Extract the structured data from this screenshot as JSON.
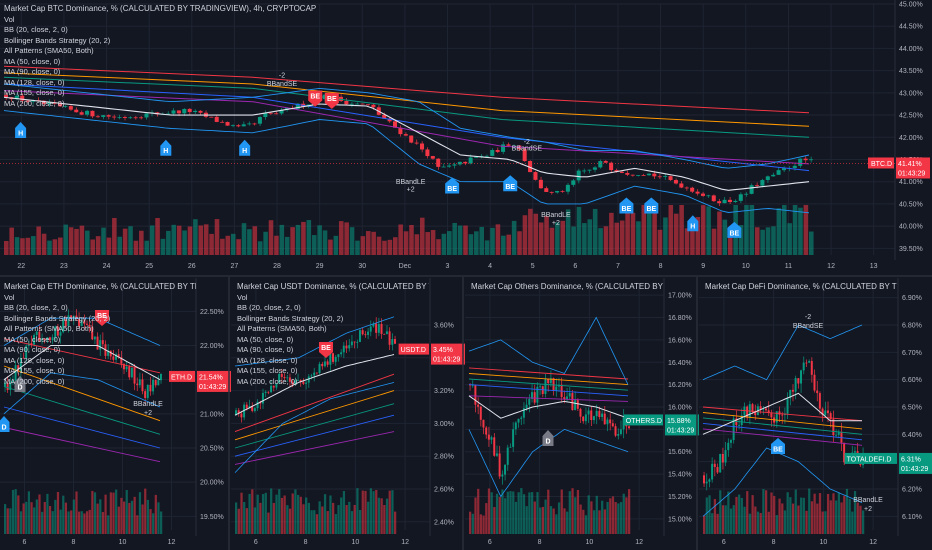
{
  "chart_data": [
    {
      "type": "line",
      "panel": "btc",
      "title": "Market Cap BTC Dominance, % (CALCULATED BY TRADINGVIEW), 4h, CRYPTOCAP",
      "indicators": [
        "Vol",
        "BB (20, close, 2, 0)",
        "Bollinger Bands Strategy (20, 2)",
        "All Patterns (SMA50, Both)",
        "MA (50, close, 0)",
        "MA (90, close, 0)",
        "MA (128, close, 0)",
        "MA (155, close, 0)",
        "MA (200, close, 0)"
      ],
      "x_labels": [
        "22",
        "23",
        "24",
        "25",
        "26",
        "27",
        "28",
        "29",
        "30",
        "Dec",
        "3",
        "4",
        "5",
        "6",
        "7",
        "8",
        "9",
        "10",
        "11",
        "12",
        "13"
      ],
      "y_ticks": [
        "45.00%",
        "44.50%",
        "44.00%",
        "43.50%",
        "43.00%",
        "42.50%",
        "42.00%",
        "41.50%",
        "41.00%",
        "40.50%",
        "40.00%",
        "39.50%"
      ],
      "ylim": [
        39.35,
        45.0
      ],
      "price_path": [
        [
          0,
          42.95
        ],
        [
          6,
          42.8
        ],
        [
          12,
          42.7
        ],
        [
          16,
          42.6
        ],
        [
          22,
          42.5
        ],
        [
          28,
          42.45
        ],
        [
          32,
          42.5
        ],
        [
          38,
          42.55
        ],
        [
          44,
          42.6
        ],
        [
          50,
          42.4
        ],
        [
          56,
          42.2
        ],
        [
          60,
          42.3
        ],
        [
          62,
          42.5
        ],
        [
          66,
          42.55
        ],
        [
          70,
          42.7
        ],
        [
          74,
          42.8
        ],
        [
          76,
          42.95
        ],
        [
          80,
          42.85
        ],
        [
          84,
          42.75
        ],
        [
          88,
          42.7
        ],
        [
          90,
          42.5
        ],
        [
          94,
          42.2
        ],
        [
          98,
          41.9
        ],
        [
          102,
          41.6
        ],
        [
          104,
          41.3
        ],
        [
          108,
          41.35
        ],
        [
          112,
          41.5
        ],
        [
          116,
          41.6
        ],
        [
          120,
          41.8
        ],
        [
          122,
          41.9
        ],
        [
          124,
          41.7
        ],
        [
          126,
          41.3
        ],
        [
          128,
          40.95
        ],
        [
          130,
          40.8
        ],
        [
          132,
          40.7
        ],
        [
          136,
          40.9
        ],
        [
          138,
          41.2
        ],
        [
          142,
          41.3
        ],
        [
          144,
          41.5
        ],
        [
          146,
          41.3
        ],
        [
          150,
          41.2
        ],
        [
          154,
          41.2
        ],
        [
          158,
          41.1
        ],
        [
          162,
          40.95
        ],
        [
          166,
          40.8
        ],
        [
          170,
          40.6
        ],
        [
          174,
          40.55
        ],
        [
          178,
          40.7
        ],
        [
          180,
          40.9
        ],
        [
          184,
          41.1
        ],
        [
          188,
          41.3
        ],
        [
          192,
          41.5
        ],
        [
          194,
          41.45
        ]
      ],
      "sma20_path": [
        [
          0,
          42.9
        ],
        [
          20,
          42.7
        ],
        [
          40,
          42.5
        ],
        [
          60,
          42.5
        ],
        [
          76,
          42.75
        ],
        [
          88,
          42.7
        ],
        [
          100,
          42.1
        ],
        [
          110,
          41.6
        ],
        [
          122,
          41.5
        ],
        [
          130,
          41.2
        ],
        [
          140,
          41.1
        ],
        [
          152,
          41.3
        ],
        [
          164,
          41.1
        ],
        [
          174,
          40.8
        ],
        [
          184,
          40.9
        ],
        [
          194,
          41.0
        ]
      ],
      "bb_upper_path": [
        [
          0,
          43.2
        ],
        [
          20,
          43.0
        ],
        [
          40,
          42.8
        ],
        [
          60,
          42.9
        ],
        [
          76,
          43.1
        ],
        [
          88,
          43.0
        ],
        [
          100,
          42.8
        ],
        [
          110,
          42.2
        ],
        [
          122,
          42.0
        ],
        [
          130,
          41.9
        ],
        [
          140,
          41.7
        ],
        [
          152,
          41.7
        ],
        [
          164,
          41.5
        ],
        [
          174,
          41.3
        ],
        [
          184,
          41.4
        ],
        [
          194,
          41.6
        ]
      ],
      "bb_lower_path": [
        [
          0,
          42.6
        ],
        [
          20,
          42.4
        ],
        [
          40,
          42.2
        ],
        [
          60,
          42.1
        ],
        [
          76,
          42.4
        ],
        [
          88,
          42.3
        ],
        [
          100,
          41.4
        ],
        [
          110,
          41.0
        ],
        [
          122,
          41.0
        ],
        [
          130,
          40.5
        ],
        [
          140,
          40.5
        ],
        [
          152,
          40.9
        ],
        [
          164,
          40.7
        ],
        [
          174,
          40.3
        ],
        [
          184,
          40.4
        ],
        [
          194,
          40.3
        ]
      ],
      "ma_paths": [
        {
          "color": "#f23645",
          "points": [
            [
              0,
              43.6
            ],
            [
              60,
              43.35
            ],
            [
              120,
              42.9
            ],
            [
              194,
              42.55
            ]
          ]
        },
        {
          "color": "#ff9800",
          "points": [
            [
              0,
              43.45
            ],
            [
              60,
              43.2
            ],
            [
              120,
              42.6
            ],
            [
              194,
              42.25
            ]
          ]
        },
        {
          "color": "#089981",
          "points": [
            [
              0,
              43.35
            ],
            [
              60,
              43.1
            ],
            [
              120,
              42.4
            ],
            [
              194,
              42.0
            ]
          ]
        },
        {
          "color": "#2962ff",
          "points": [
            [
              0,
              43.2
            ],
            [
              60,
              42.9
            ],
            [
              120,
              42.0
            ],
            [
              194,
              41.25
            ]
          ]
        },
        {
          "color": "#9c27b0",
          "points": [
            [
              0,
              43.05
            ],
            [
              60,
              42.8
            ],
            [
              120,
              41.8
            ],
            [
              194,
              41.4
            ]
          ]
        }
      ],
      "last_value": "41.41%",
      "last_label": "BTC.D",
      "last_time": "01:43:29",
      "markers": [
        {
          "t": 4,
          "v": 42.3,
          "text": "H",
          "kind": "badge-blue"
        },
        {
          "t": 39,
          "v": 41.9,
          "text": "H",
          "kind": "badge-blue"
        },
        {
          "t": 58,
          "v": 41.9,
          "text": "H",
          "kind": "badge-blue"
        },
        {
          "t": 75,
          "v": 43.05,
          "text": "BE",
          "kind": "badge-red"
        },
        {
          "t": 79,
          "v": 43.0,
          "text": "BE",
          "kind": "badge-red"
        },
        {
          "t": 108,
          "v": 41.05,
          "text": "BE",
          "kind": "badge-blue"
        },
        {
          "t": 122,
          "v": 41.1,
          "text": "BE",
          "kind": "badge-blue"
        },
        {
          "t": 150,
          "v": 40.6,
          "text": "BE",
          "kind": "badge-blue"
        },
        {
          "t": 156,
          "v": 40.6,
          "text": "BE",
          "kind": "badge-blue"
        },
        {
          "t": 166,
          "v": 40.2,
          "text": "H",
          "kind": "badge-blue"
        },
        {
          "t": 176,
          "v": 40.05,
          "text": "BE",
          "kind": "badge-blue"
        }
      ],
      "notes": [
        {
          "t": 67,
          "v": 43.35,
          "text": "-2"
        },
        {
          "t": 67,
          "v": 43.15,
          "text": "BBandSE"
        },
        {
          "t": 126,
          "v": 41.85,
          "text": "-2"
        },
        {
          "t": 126,
          "v": 41.7,
          "text": "BBandSE"
        },
        {
          "t": 98,
          "v": 40.95,
          "text": "BBandLE"
        },
        {
          "t": 98,
          "v": 40.78,
          "text": "+2"
        },
        {
          "t": 133,
          "v": 40.2,
          "text": "BBandLE"
        },
        {
          "t": 133,
          "v": 40.03,
          "text": "+2"
        }
      ]
    },
    {
      "type": "line",
      "panel": "eth",
      "title": "Market Cap ETH Dominance, % (CALCULATED BY TRADINGVIEW),",
      "indicators": [
        "Vol",
        "BB (20, close, 2, 0)",
        "Bollinger Bands Strategy (20, 2)",
        "All Patterns (SMA50, Both)",
        "MA (50, close, 0)",
        "MA (90, close, 0)",
        "MA (128, close, 0)",
        "MA (155, close, 0)",
        "MA (200, close, 0)"
      ],
      "x_labels": [
        "6",
        "8",
        "10",
        "12"
      ],
      "y_ticks": [
        "22.50%",
        "22.00%",
        "21.50%",
        "21.00%",
        "20.50%",
        "20.00%",
        "19.50%"
      ],
      "ylim": [
        19.3,
        22.9
      ],
      "last_value": "21.54%",
      "last_label": "ETH.D",
      "last_time": "01:43:29"
    },
    {
      "type": "line",
      "panel": "usdt",
      "title": "Market Cap USDT Dominance, % (CALCULATED BY TRADINGVIEW),",
      "x_labels": [
        "6",
        "8",
        "10",
        "12"
      ],
      "y_ticks": [
        "3.60%",
        "3.40%",
        "3.20%",
        "3.00%",
        "2.80%",
        "2.60%",
        "2.40%"
      ],
      "ylim": [
        2.35,
        3.85
      ],
      "last_value": "3.45%",
      "last_label": "USDT.D",
      "last_time": "01:43:29"
    },
    {
      "type": "line",
      "panel": "others",
      "title": "Market Cap Others Dominance, % (CALCULATED BY TRADINGVIE",
      "x_labels": [
        "6",
        "8",
        "10",
        "12"
      ],
      "y_ticks": [
        "17.00%",
        "16.80%",
        "16.60%",
        "16.40%",
        "16.20%",
        "16.00%",
        "15.80%",
        "15.60%",
        "15.40%",
        "15.20%",
        "15.00%"
      ],
      "ylim": [
        14.9,
        17.1
      ],
      "last_value": "15.88%",
      "last_label": "OTHERS.D",
      "last_time": "01:43:29"
    },
    {
      "type": "line",
      "panel": "defi",
      "title": "Market Cap DeFi Dominance, % (CALCULATED BY TRADINGVIEW)",
      "x_labels": [
        "6",
        "8",
        "10",
        "12"
      ],
      "y_ticks": [
        "6.90%",
        "6.80%",
        "6.70%",
        "6.60%",
        "6.50%",
        "6.40%",
        "6.30%",
        "6.20%",
        "6.10%"
      ],
      "ylim": [
        6.05,
        6.95
      ],
      "last_value": "6.31%",
      "last_label": "TOTALDEFI.D",
      "last_time": "01:43:29"
    }
  ],
  "colors": {
    "background": "#131722",
    "grid": "#1f2433",
    "up": "#089981",
    "down": "#f23645",
    "sma": "#e0e3eb",
    "bb": "#2196f3",
    "badge_blue": "#2196f3",
    "badge_red": "#f23645",
    "tag_green": "#089981"
  },
  "eth_notes": {
    "d1": "D",
    "d2": "D",
    "bband": "BBandLE",
    "plus": "+2"
  },
  "usdt_notes": {
    "be": "BE"
  },
  "others_notes": {
    "d": "D"
  },
  "defi_notes": {
    "minus": "-2",
    "bband_se": "BBandSE",
    "be": "BE",
    "bband_le": "BBandLE",
    "plus": "+2"
  }
}
